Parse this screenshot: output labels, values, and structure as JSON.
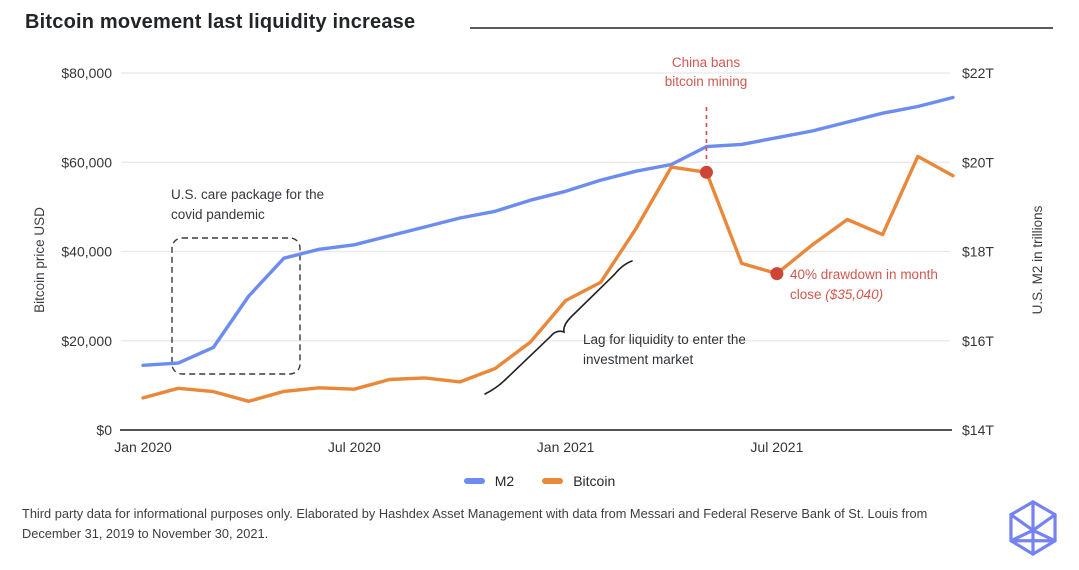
{
  "header": {
    "title": "Bitcoin movement last liquidity increase"
  },
  "chart_data": {
    "type": "line",
    "title": "Bitcoin movement last liquidity increase",
    "x_tick_labels": [
      "Jan 2020",
      "Jul 2020",
      "Jan 2021",
      "Jul 2021"
    ],
    "x_tick_indices": [
      0,
      6,
      12,
      18
    ],
    "points_period": "monthly, Dec 31 2019 to Nov 30 2021",
    "left_axis": {
      "title": "Bitcoin price USD",
      "min": 0,
      "max": 80000,
      "tick_values": [
        0,
        20000,
        40000,
        60000,
        80000
      ],
      "tick_labels": [
        "$0",
        "$20,000",
        "$40,000",
        "$60,000",
        "$80,000"
      ]
    },
    "right_axis": {
      "title": "U.S. M2 in trillions",
      "min": 14,
      "max": 22,
      "tick_values": [
        14,
        16,
        18,
        20,
        22
      ],
      "tick_labels": [
        "$14T",
        "$16T",
        "$18T",
        "$20T",
        "$22T"
      ]
    },
    "series": [
      {
        "name": "M2",
        "axis": "right",
        "color": "#6d8cef",
        "values": [
          15.45,
          15.5,
          15.85,
          17.0,
          17.85,
          18.05,
          18.15,
          18.35,
          18.55,
          18.75,
          18.9,
          19.15,
          19.35,
          19.6,
          19.8,
          19.95,
          20.35,
          20.4,
          20.55,
          20.7,
          20.9,
          21.1,
          21.25,
          21.45
        ]
      },
      {
        "name": "Bitcoin",
        "axis": "left",
        "color": "#e9873b",
        "values": [
          7193,
          9350,
          8599,
          6438,
          8658,
          9461,
          9137,
          11323,
          11680,
          10784,
          13780,
          19700,
          29001,
          33114,
          45137,
          58918,
          57750,
          37332,
          35040,
          41460,
          47166,
          43790,
          61318,
          56987
        ]
      }
    ],
    "marker_points": [
      {
        "id": "china-ban-dot",
        "series": "Bitcoin",
        "index": 16,
        "color": "#ce4437",
        "dashed_line_above": true
      },
      {
        "id": "drawdown-dot",
        "series": "Bitcoin",
        "index": 18,
        "color": "#ce4437",
        "dashed_line_above": false
      }
    ],
    "grid": "horizontal only",
    "legend_position": "bottom center"
  },
  "legend": {
    "items": [
      {
        "label": "M2",
        "color": "#6d8cef"
      },
      {
        "label": "Bitcoin",
        "color": "#e9873b"
      }
    ]
  },
  "annotations": {
    "care_package": {
      "line1": "U.S. care package for the",
      "line2": "covid pandemic"
    },
    "china_ban": {
      "line1": "China bans",
      "line2": "bitcoin mining"
    },
    "drawdown": {
      "line1": "40% drawdown in month",
      "line2_prefix": "close ",
      "line2_italic": "($35,040)"
    },
    "lag": {
      "line1": "Lag for liquidity to enter the",
      "line2": "investment market"
    }
  },
  "footer": {
    "line1": "Third party data for informational purposes only. Elaborated by Hashdex Asset Management with data from Messari and Federal Reserve Bank of St. Louis from",
    "line2": "December 31, 2019 to November 30, 2021.",
    "logo_icon": "hashdex-polyhedron-icon",
    "logo_color": "#7583f2"
  }
}
